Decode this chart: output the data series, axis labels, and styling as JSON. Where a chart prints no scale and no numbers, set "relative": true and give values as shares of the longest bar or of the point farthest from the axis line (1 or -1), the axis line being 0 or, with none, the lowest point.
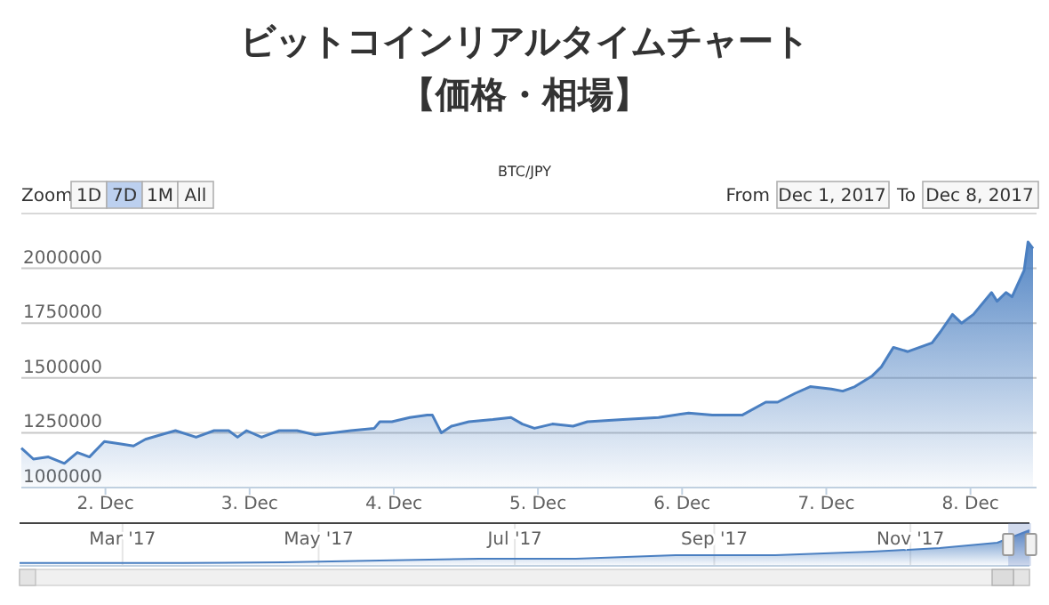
{
  "chart_data": [
    {
      "type": "area",
      "title": "ビットコインリアルタイムチャート",
      "subtitle": "【価格・相場】",
      "annotations": [
        "BTC/JPY",
        "Zoom",
        "1D",
        "7D",
        "1M",
        "All",
        "From",
        "Dec 1, 2017",
        "To",
        "Dec 8, 2017"
      ],
      "x": [
        "2017-12-01T10:00",
        "2017-12-01T12:00",
        "2017-12-01T14:30",
        "2017-12-01T17:10",
        "2017-12-01T19:20",
        "2017-12-01T21:20",
        "2017-12-01T23:50",
        "2017-12-02T02:20",
        "2017-12-02T04:40",
        "2017-12-02T06:40",
        "2017-12-02T09:10",
        "2017-12-02T11:40",
        "2017-12-02T15:05",
        "2017-12-02T18:05",
        "2017-12-02T20:30",
        "2017-12-02T22:00",
        "2017-12-02T23:30",
        "2017-12-03T02:00",
        "2017-12-03T04:55",
        "2017-12-03T07:55",
        "2017-12-03T10:55",
        "2017-12-03T13:50",
        "2017-12-03T16:50",
        "2017-12-03T20:45",
        "2017-12-03T21:40",
        "2017-12-03T23:40",
        "2017-12-04T02:40",
        "2017-12-04T05:35",
        "2017-12-04T06:25",
        "2017-12-04T07:55",
        "2017-12-04T09:35",
        "2017-12-04T12:30",
        "2017-12-04T16:30",
        "2017-12-04T19:30",
        "2017-12-04T21:25",
        "2017-12-04T23:25",
        "2017-12-05T02:25",
        "2017-12-05T05:50",
        "2017-12-05T08:15",
        "2017-12-05T14:10",
        "2017-12-05T20:05",
        "2017-12-06T01:05",
        "2017-12-06T05:00",
        "2017-12-06T10:00",
        "2017-12-06T13:55",
        "2017-12-06T15:55",
        "2017-12-06T18:50",
        "2017-12-06T21:20",
        "2017-12-07T00:50",
        "2017-12-07T02:45",
        "2017-12-07T04:45",
        "2017-12-07T07:40",
        "2017-12-07T09:10",
        "2017-12-07T11:10",
        "2017-12-07T13:35",
        "2017-12-07T17:35",
        "2017-12-07T19:00",
        "2017-12-07T21:00",
        "2017-12-07T22:30",
        "2017-12-08T00:30",
        "2017-12-08T03:30",
        "2017-12-08T04:25",
        "2017-12-08T05:55",
        "2017-12-08T06:55",
        "2017-12-08T08:55",
        "2017-12-08T09:35",
        "2017-12-08T10:25"
      ],
      "series": [
        {
          "color": "#4a7fc1",
          "values": [
            1180000,
            1130000,
            1140000,
            1110000,
            1160000,
            1140000,
            1210000,
            1200000,
            1190000,
            1220000,
            1240000,
            1260000,
            1230000,
            1260000,
            1260000,
            1230000,
            1260000,
            1230000,
            1260000,
            1260000,
            1240000,
            1250000,
            1260000,
            1270000,
            1300000,
            1300000,
            1320000,
            1330000,
            1330000,
            1250000,
            1280000,
            1300000,
            1310000,
            1320000,
            1290000,
            1270000,
            1290000,
            1280000,
            1300000,
            1310000,
            1320000,
            1340000,
            1330000,
            1330000,
            1390000,
            1390000,
            1430000,
            1460000,
            1450000,
            1440000,
            1460000,
            1510000,
            1550000,
            1640000,
            1620000,
            1660000,
            1710000,
            1790000,
            1750000,
            1790000,
            1890000,
            1850000,
            1890000,
            1870000,
            1990000,
            2120000,
            2090000
          ]
        }
      ],
      "xlim": [
        "2017-12-01T10:00",
        "2017-12-08T11:00"
      ],
      "xticks": [
        {
          "value": "2017-12-02",
          "label": "2. Dec"
        },
        {
          "value": "2017-12-03",
          "label": "3. Dec"
        },
        {
          "value": "2017-12-04",
          "label": "4. Dec"
        },
        {
          "value": "2017-12-05",
          "label": "5. Dec"
        },
        {
          "value": "2017-12-06",
          "label": "6. Dec"
        },
        {
          "value": "2017-12-07",
          "label": "7. Dec"
        },
        {
          "value": "2017-12-08",
          "label": "8. Dec"
        }
      ],
      "ylim": [
        1000000,
        2250000
      ],
      "yticks": [
        1000000,
        1250000,
        1500000,
        1750000,
        2000000
      ],
      "grid": "y"
    },
    {
      "type": "area",
      "relative": true,
      "grid": "x",
      "x": [
        "2017-01-28",
        "2017-02-20",
        "2017-03-20",
        "2017-04-20",
        "2017-05-20",
        "2017-06-20",
        "2017-07-20",
        "2017-08-20",
        "2017-09-20",
        "2017-10-20",
        "2017-11-10",
        "2017-11-28",
        "2017-12-08"
      ],
      "series": [
        {
          "color": "#4a7fc1",
          "values": [
            0.08,
            0.08,
            0.08,
            0.1,
            0.15,
            0.2,
            0.2,
            0.3,
            0.3,
            0.4,
            0.5,
            0.65,
            1
          ]
        }
      ],
      "xlim": [
        "2017-01-28",
        "2017-12-08"
      ],
      "xticks": [
        {
          "value": "2017-03-01",
          "label": "Mar '17"
        },
        {
          "value": "2017-05-01",
          "label": "May '17"
        },
        {
          "value": "2017-07-01",
          "label": "Jul '17"
        },
        {
          "value": "2017-09-01",
          "label": "Sep '17"
        },
        {
          "value": "2017-11-01",
          "label": "Nov '17"
        }
      ]
    }
  ]
}
